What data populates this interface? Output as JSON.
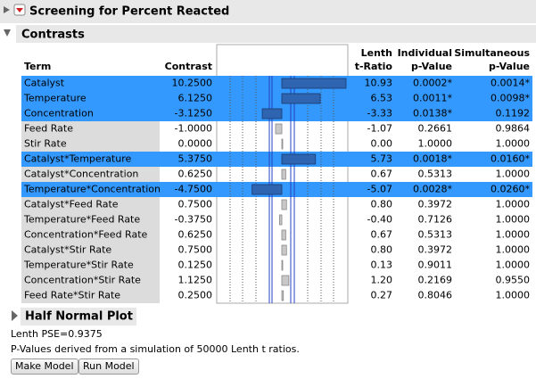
{
  "header": {
    "title": "Screening for Percent Reacted"
  },
  "contrasts": {
    "title": "Contrasts",
    "columns": {
      "term": [
        "Term"
      ],
      "contrast": [
        "Contrast"
      ],
      "t_ratio": [
        "Lenth",
        "t-Ratio"
      ],
      "individual_p": [
        "Individual",
        "p-Value"
      ],
      "simultaneous_p": [
        "Simultaneous",
        "p-Value"
      ]
    },
    "selected_color": "#3399ff",
    "bar_color": "#2f64b0",
    "bar_idle_color": "#c8c8c8",
    "rows": [
      {
        "term": "Catalyst",
        "contrast": {
          "value": 10.25,
          "label": "10.2500"
        },
        "t_ratio": "10.93",
        "individual_p": "0.0002*",
        "individual_color": "#f07a2a",
        "simultaneous_p": "0.0014*",
        "simultaneous_color": "#f07a2a",
        "selected": true
      },
      {
        "term": "Temperature",
        "contrast": {
          "value": 6.125,
          "label": "6.1250"
        },
        "t_ratio": "6.53",
        "individual_p": "0.0011*",
        "individual_color": "#f07a2a",
        "simultaneous_p": "0.0098*",
        "simultaneous_color": "#f07a2a",
        "selected": true
      },
      {
        "term": "Concentration",
        "contrast": {
          "value": -3.125,
          "label": "-3.1250"
        },
        "t_ratio": "-3.33",
        "individual_p": "0.0138*",
        "individual_color": "#e020c8",
        "simultaneous_p": "0.1192",
        "selected": true
      },
      {
        "term": "Feed Rate",
        "contrast": {
          "value": -1,
          "label": "-1.0000"
        },
        "t_ratio": "-1.07",
        "individual_p": "0.2661",
        "simultaneous_p": "0.9864"
      },
      {
        "term": "Stir Rate",
        "contrast": {
          "value": 0,
          "label": "0.0000"
        },
        "t_ratio": "0.00",
        "individual_p": "1.0000",
        "simultaneous_p": "1.0000"
      },
      {
        "term": "Catalyst*Temperature",
        "contrast": {
          "value": 5.375,
          "label": "5.3750"
        },
        "t_ratio": "5.73",
        "individual_p": "0.0018*",
        "individual_color": "#f07a2a",
        "simultaneous_p": "0.0160*",
        "simultaneous_color": "#e020c8",
        "selected": true
      },
      {
        "term": "Catalyst*Concentration",
        "contrast": {
          "value": 0.625,
          "label": "0.6250"
        },
        "t_ratio": "0.67",
        "individual_p": "0.5313",
        "simultaneous_p": "1.0000"
      },
      {
        "term": "Temperature*Concentration",
        "contrast": {
          "value": -4.75,
          "label": "-4.7500"
        },
        "t_ratio": "-5.07",
        "individual_p": "0.0028*",
        "individual_color": "#f07a2a",
        "simultaneous_p": "0.0260*",
        "simultaneous_color": "#e020c8",
        "selected": true
      },
      {
        "term": "Catalyst*Feed Rate",
        "contrast": {
          "value": 0.75,
          "label": "0.7500"
        },
        "t_ratio": "0.80",
        "individual_p": "0.3972",
        "simultaneous_p": "1.0000"
      },
      {
        "term": "Temperature*Feed Rate",
        "contrast": {
          "value": -0.375,
          "label": "-0.3750"
        },
        "t_ratio": "-0.40",
        "individual_p": "0.7126",
        "simultaneous_p": "1.0000"
      },
      {
        "term": "Concentration*Feed Rate",
        "contrast": {
          "value": 0.625,
          "label": "0.6250"
        },
        "t_ratio": "0.67",
        "individual_p": "0.5313",
        "simultaneous_p": "1.0000"
      },
      {
        "term": "Catalyst*Stir Rate",
        "contrast": {
          "value": 0.75,
          "label": "0.7500"
        },
        "t_ratio": "0.80",
        "individual_p": "0.3972",
        "simultaneous_p": "1.0000"
      },
      {
        "term": "Temperature*Stir Rate",
        "contrast": {
          "value": 0.125,
          "label": "0.1250"
        },
        "t_ratio": "0.13",
        "individual_p": "0.9011",
        "simultaneous_p": "1.0000"
      },
      {
        "term": "Concentration*Stir Rate",
        "contrast": {
          "value": 1.125,
          "label": "1.1250"
        },
        "t_ratio": "1.20",
        "individual_p": "0.2169",
        "simultaneous_p": "0.9550"
      },
      {
        "term": "Feed Rate*Stir Rate",
        "contrast": {
          "value": 0.25,
          "label": "0.2500"
        },
        "t_ratio": "0.27",
        "individual_p": "0.8046",
        "simultaneous_p": "1.0000"
      }
    ]
  },
  "half_normal": {
    "title": "Half Normal Plot"
  },
  "notes": [
    "Lenth PSE=0.9375",
    "P-Values derived from a simulation of 50000 Lenth t ratios."
  ],
  "buttons": [
    "Make Model",
    "Run Model"
  ]
}
